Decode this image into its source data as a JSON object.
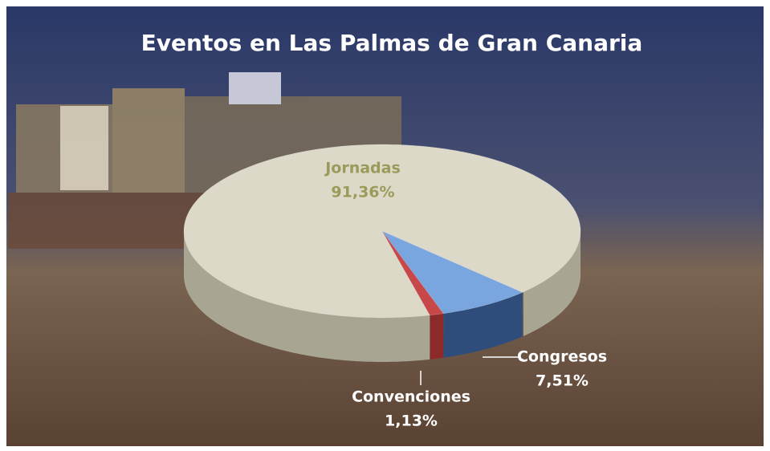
{
  "chart_data": {
    "type": "pie3d",
    "title": "Eventos en Las Palmas de Gran Canaria",
    "categories": [
      "Jornadas",
      "Congresos",
      "Convenciones"
    ],
    "values": [
      91.36,
      7.51,
      1.13
    ],
    "value_labels": [
      "91,36%",
      "7,51%",
      "1,13%"
    ],
    "colors": [
      "#dcd9c9",
      "#7aa6e0",
      "#c8484a"
    ]
  }
}
